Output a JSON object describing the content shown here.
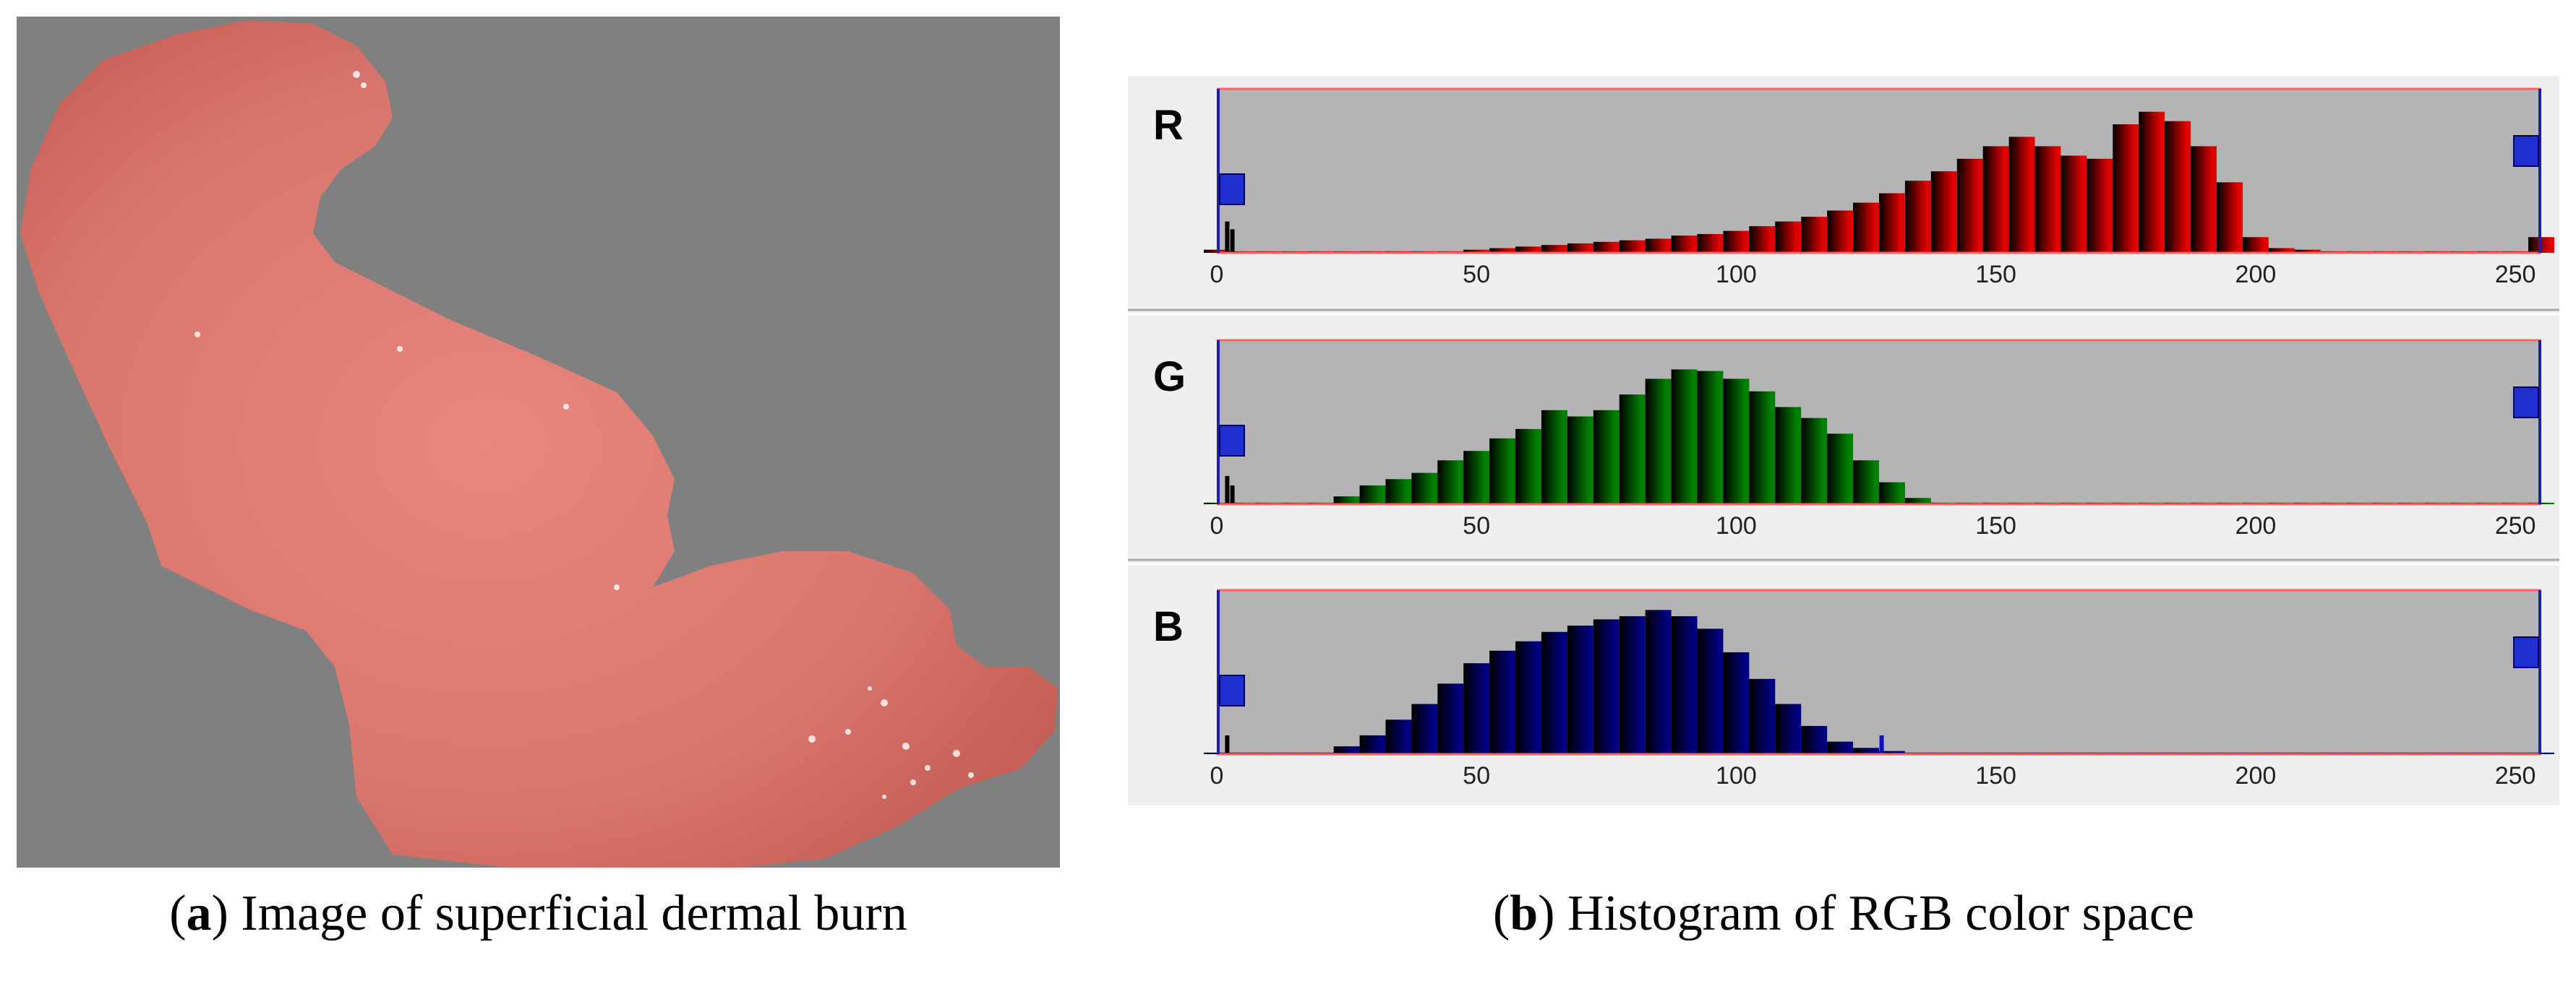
{
  "panel_a": {
    "caption_letter": "a",
    "caption_text": "Image of superficial dermal burn",
    "background_color": "#808080",
    "tissue_color": "#d9766d"
  },
  "panel_b": {
    "caption_letter": "b",
    "caption_text": "Histogram of RGB color space"
  },
  "chart_data": [
    {
      "type": "bar",
      "channel_label": "R",
      "color": "#e00000",
      "xlim": [
        0,
        255
      ],
      "ylim": [
        0,
        1
      ],
      "xticks": [
        0,
        50,
        100,
        150,
        200,
        250
      ],
      "x": [
        0,
        5,
        10,
        15,
        20,
        25,
        30,
        35,
        40,
        45,
        50,
        55,
        60,
        65,
        70,
        75,
        80,
        85,
        90,
        95,
        100,
        105,
        110,
        115,
        120,
        125,
        130,
        135,
        140,
        145,
        150,
        155,
        160,
        165,
        170,
        175,
        180,
        185,
        190,
        195,
        200,
        205,
        210,
        215,
        220,
        225,
        230,
        235,
        240,
        245,
        250,
        255
      ],
      "values": [
        0.02,
        0.01,
        0.01,
        0.01,
        0.01,
        0.01,
        0.01,
        0.01,
        0.01,
        0.01,
        0.02,
        0.03,
        0.04,
        0.05,
        0.06,
        0.07,
        0.08,
        0.09,
        0.11,
        0.12,
        0.14,
        0.17,
        0.2,
        0.23,
        0.27,
        0.32,
        0.38,
        0.46,
        0.52,
        0.6,
        0.68,
        0.74,
        0.68,
        0.62,
        0.6,
        0.82,
        0.9,
        0.84,
        0.68,
        0.45,
        0.1,
        0.03,
        0.02,
        0.01,
        0.01,
        0.01,
        0.01,
        0.01,
        0.01,
        0.01,
        0.01,
        0.1
      ],
      "spikes": [
        {
          "x": 2,
          "value": 0.2
        },
        {
          "x": 3,
          "value": 0.15
        }
      ]
    },
    {
      "type": "bar",
      "channel_label": "G",
      "color": "#008000",
      "xlim": [
        0,
        255
      ],
      "ylim": [
        0,
        1
      ],
      "xticks": [
        0,
        50,
        100,
        150,
        200,
        250
      ],
      "x": [
        0,
        5,
        10,
        15,
        20,
        25,
        30,
        35,
        40,
        45,
        50,
        55,
        60,
        65,
        70,
        75,
        80,
        85,
        90,
        95,
        100,
        105,
        110,
        115,
        120,
        125,
        130,
        135,
        140,
        145,
        150,
        155,
        160,
        165,
        170,
        175,
        180,
        185,
        190,
        195,
        200,
        205,
        210,
        215,
        220,
        225,
        230,
        235,
        240,
        245,
        250,
        255
      ],
      "values": [
        0.01,
        0.01,
        0.01,
        0.01,
        0.01,
        0.05,
        0.12,
        0.16,
        0.2,
        0.28,
        0.34,
        0.42,
        0.48,
        0.6,
        0.56,
        0.6,
        0.7,
        0.8,
        0.86,
        0.85,
        0.8,
        0.72,
        0.62,
        0.55,
        0.45,
        0.28,
        0.14,
        0.04,
        0.01,
        0.01,
        0.01,
        0.01,
        0.01,
        0.01,
        0.01,
        0.01,
        0.01,
        0.01,
        0.01,
        0.01,
        0.01,
        0.01,
        0.01,
        0.01,
        0.01,
        0.01,
        0.01,
        0.01,
        0.01,
        0.01,
        0.01,
        0.01
      ],
      "spikes": [
        {
          "x": 2,
          "value": 0.18
        },
        {
          "x": 3,
          "value": 0.12
        }
      ]
    },
    {
      "type": "bar",
      "channel_label": "B",
      "color": "#000080",
      "xlim": [
        0,
        255
      ],
      "ylim": [
        0,
        1
      ],
      "xticks": [
        0,
        50,
        100,
        150,
        200,
        250
      ],
      "x": [
        0,
        5,
        10,
        15,
        20,
        25,
        30,
        35,
        40,
        45,
        50,
        55,
        60,
        65,
        70,
        75,
        80,
        85,
        90,
        95,
        100,
        105,
        110,
        115,
        120,
        125,
        130,
        135,
        140,
        145,
        150,
        155,
        160,
        165,
        170,
        175,
        180,
        185,
        190,
        195,
        200,
        205,
        210,
        215,
        220,
        225,
        230,
        235,
        240,
        245,
        250,
        255
      ],
      "values": [
        0.01,
        0.01,
        0.01,
        0.01,
        0.01,
        0.05,
        0.12,
        0.22,
        0.32,
        0.45,
        0.58,
        0.66,
        0.72,
        0.78,
        0.82,
        0.86,
        0.88,
        0.92,
        0.88,
        0.8,
        0.65,
        0.48,
        0.32,
        0.18,
        0.08,
        0.04,
        0.02,
        0.01,
        0.01,
        0.01,
        0.01,
        0.01,
        0.01,
        0.01,
        0.01,
        0.01,
        0.01,
        0.01,
        0.01,
        0.01,
        0.01,
        0.01,
        0.01,
        0.01,
        0.01,
        0.01,
        0.01,
        0.01,
        0.01,
        0.01,
        0.01,
        0.01
      ],
      "spikes": [
        {
          "x": 2,
          "value": 0.12
        },
        {
          "x": 128,
          "value": 0.12
        }
      ]
    }
  ]
}
